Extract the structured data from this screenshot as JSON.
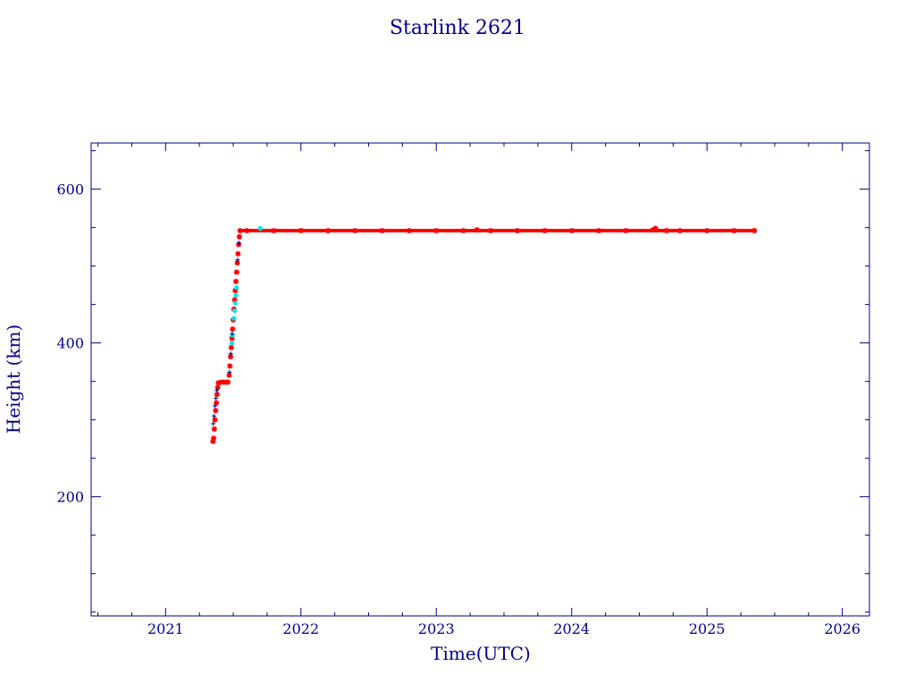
{
  "chart_data": {
    "type": "scatter",
    "title": "Starlink 2621",
    "xlabel": "Time(UTC)",
    "ylabel": "Height (km)",
    "xlim": [
      2020.45,
      2026.2
    ],
    "ylim": [
      45,
      660
    ],
    "x_ticks": [
      "2021",
      "2022",
      "2023",
      "2024",
      "2025",
      "2026"
    ],
    "y_ticks": [
      "200",
      "400",
      "600"
    ],
    "grid": false,
    "series": [
      {
        "color": "#ff0000",
        "marker": "asterisk",
        "points": [
          [
            2021.35,
            272
          ],
          [
            2021.355,
            276
          ],
          [
            2021.36,
            288
          ],
          [
            2021.365,
            300
          ],
          [
            2021.37,
            312
          ],
          [
            2021.375,
            322
          ],
          [
            2021.38,
            333
          ],
          [
            2021.385,
            342
          ],
          [
            2021.39,
            348
          ],
          [
            2021.41,
            349
          ],
          [
            2021.43,
            349
          ],
          [
            2021.45,
            349
          ],
          [
            2021.46,
            349
          ],
          [
            2021.47,
            358
          ],
          [
            2021.475,
            370
          ],
          [
            2021.48,
            382
          ],
          [
            2021.485,
            394
          ],
          [
            2021.49,
            406
          ],
          [
            2021.495,
            418
          ],
          [
            2021.5,
            430
          ],
          [
            2021.505,
            444
          ],
          [
            2021.51,
            456
          ],
          [
            2021.515,
            468
          ],
          [
            2021.52,
            480
          ],
          [
            2021.525,
            492
          ],
          [
            2021.53,
            504
          ],
          [
            2021.535,
            516
          ],
          [
            2021.54,
            528
          ],
          [
            2021.545,
            538
          ],
          [
            2021.55,
            546
          ],
          [
            2021.6,
            546
          ],
          [
            2021.8,
            546
          ],
          [
            2022.0,
            546
          ],
          [
            2022.2,
            546
          ],
          [
            2022.4,
            546
          ],
          [
            2022.6,
            546
          ],
          [
            2022.8,
            546
          ],
          [
            2023.0,
            546
          ],
          [
            2023.2,
            546
          ],
          [
            2023.3,
            547
          ],
          [
            2023.4,
            546
          ],
          [
            2023.6,
            546
          ],
          [
            2023.8,
            546
          ],
          [
            2024.0,
            546
          ],
          [
            2024.2,
            546
          ],
          [
            2024.4,
            546
          ],
          [
            2024.6,
            547
          ],
          [
            2024.62,
            549
          ],
          [
            2024.7,
            546
          ],
          [
            2024.8,
            546
          ],
          [
            2025.0,
            546
          ],
          [
            2025.2,
            546
          ],
          [
            2025.35,
            546
          ]
        ]
      },
      {
        "color": "#00e5ee",
        "marker": "dot",
        "points": [
          [
            2021.505,
            432
          ],
          [
            2021.51,
            442
          ],
          [
            2021.515,
            452
          ],
          [
            2021.52,
            462
          ],
          [
            2021.525,
            472
          ],
          [
            2021.49,
            400
          ],
          [
            2021.495,
            410
          ],
          [
            2021.7,
            549
          ]
        ]
      },
      {
        "color": "#00008b",
        "marker": "plus",
        "points": [
          [
            2021.352,
            295
          ],
          [
            2021.358,
            305
          ],
          [
            2021.364,
            318
          ],
          [
            2021.372,
            328
          ],
          [
            2021.378,
            338
          ],
          [
            2021.472,
            362
          ],
          [
            2021.482,
            386
          ],
          [
            2021.492,
            412
          ],
          [
            2021.532,
            508
          ],
          [
            2021.542,
            530
          ]
        ]
      }
    ]
  }
}
